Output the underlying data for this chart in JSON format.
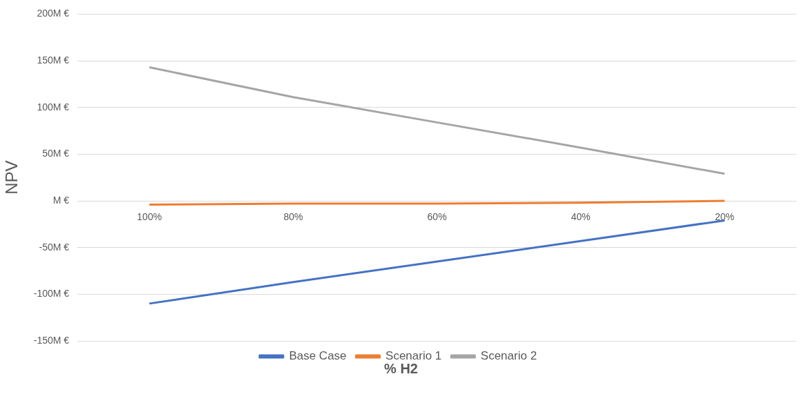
{
  "chart_data": {
    "type": "line",
    "xlabel": "% H2",
    "ylabel": "NPV",
    "categories": [
      "100%",
      "80%",
      "60%",
      "40%",
      "20%"
    ],
    "series": [
      {
        "name": "Base Case",
        "color": "#4472c4",
        "values": [
          -110,
          -87,
          -65,
          -43,
          -21
        ]
      },
      {
        "name": "Scenario 1",
        "color": "#ed7d31",
        "values": [
          -4,
          -3,
          -3,
          -2,
          0
        ]
      },
      {
        "name": "Scenario 2",
        "color": "#a5a5a5",
        "values": [
          143,
          111,
          84,
          57,
          29
        ]
      }
    ],
    "ylim": [
      -150,
      200
    ],
    "yticks": [
      {
        "value": -150,
        "label": "-150M €"
      },
      {
        "value": -100,
        "label": "-100M €"
      },
      {
        "value": -50,
        "label": "-50M €"
      },
      {
        "value": 0,
        "label": "M €"
      },
      {
        "value": 50,
        "label": "50M €"
      },
      {
        "value": 100,
        "label": "100M €"
      },
      {
        "value": 150,
        "label": "150M €"
      },
      {
        "value": 200,
        "label": "200M €"
      }
    ],
    "grid": "y",
    "legend": "bottom",
    "marker": "none",
    "line_style": "solid"
  }
}
